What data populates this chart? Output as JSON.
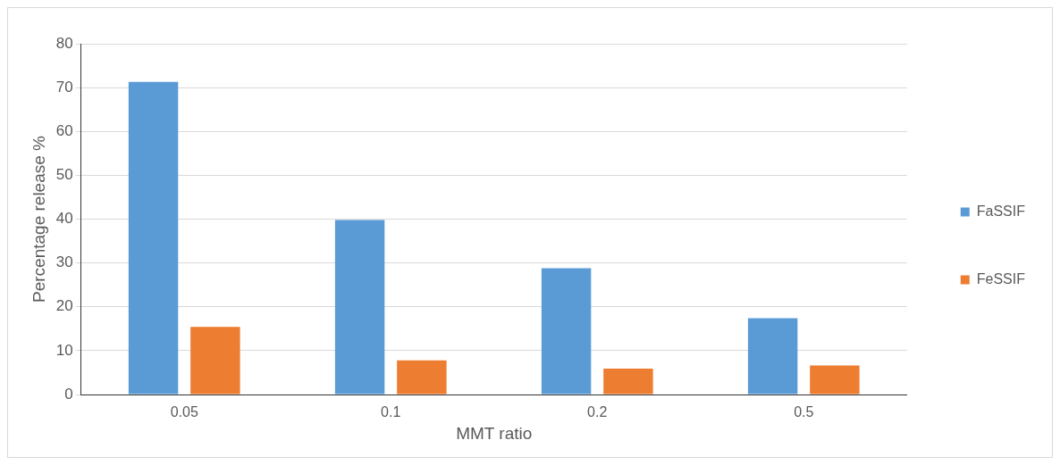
{
  "chart_data": {
    "type": "bar",
    "xlabel": "MMT ratio",
    "ylabel": "Percentage release %",
    "categories": [
      "0.05",
      "0.1",
      "0.2",
      "0.5"
    ],
    "series": [
      {
        "name": "FaSSIF",
        "color": "#5b9bd5",
        "values": [
          71.3,
          39.8,
          28.8,
          17.4
        ]
      },
      {
        "name": "FeSSIF",
        "color": "#ed7d31",
        "values": [
          15.4,
          7.8,
          5.9,
          6.6
        ]
      }
    ],
    "ylim": [
      0,
      80
    ],
    "yticks": [
      0,
      10,
      20,
      30,
      40,
      50,
      60,
      70,
      80
    ],
    "grid": "y",
    "legend": "right"
  }
}
